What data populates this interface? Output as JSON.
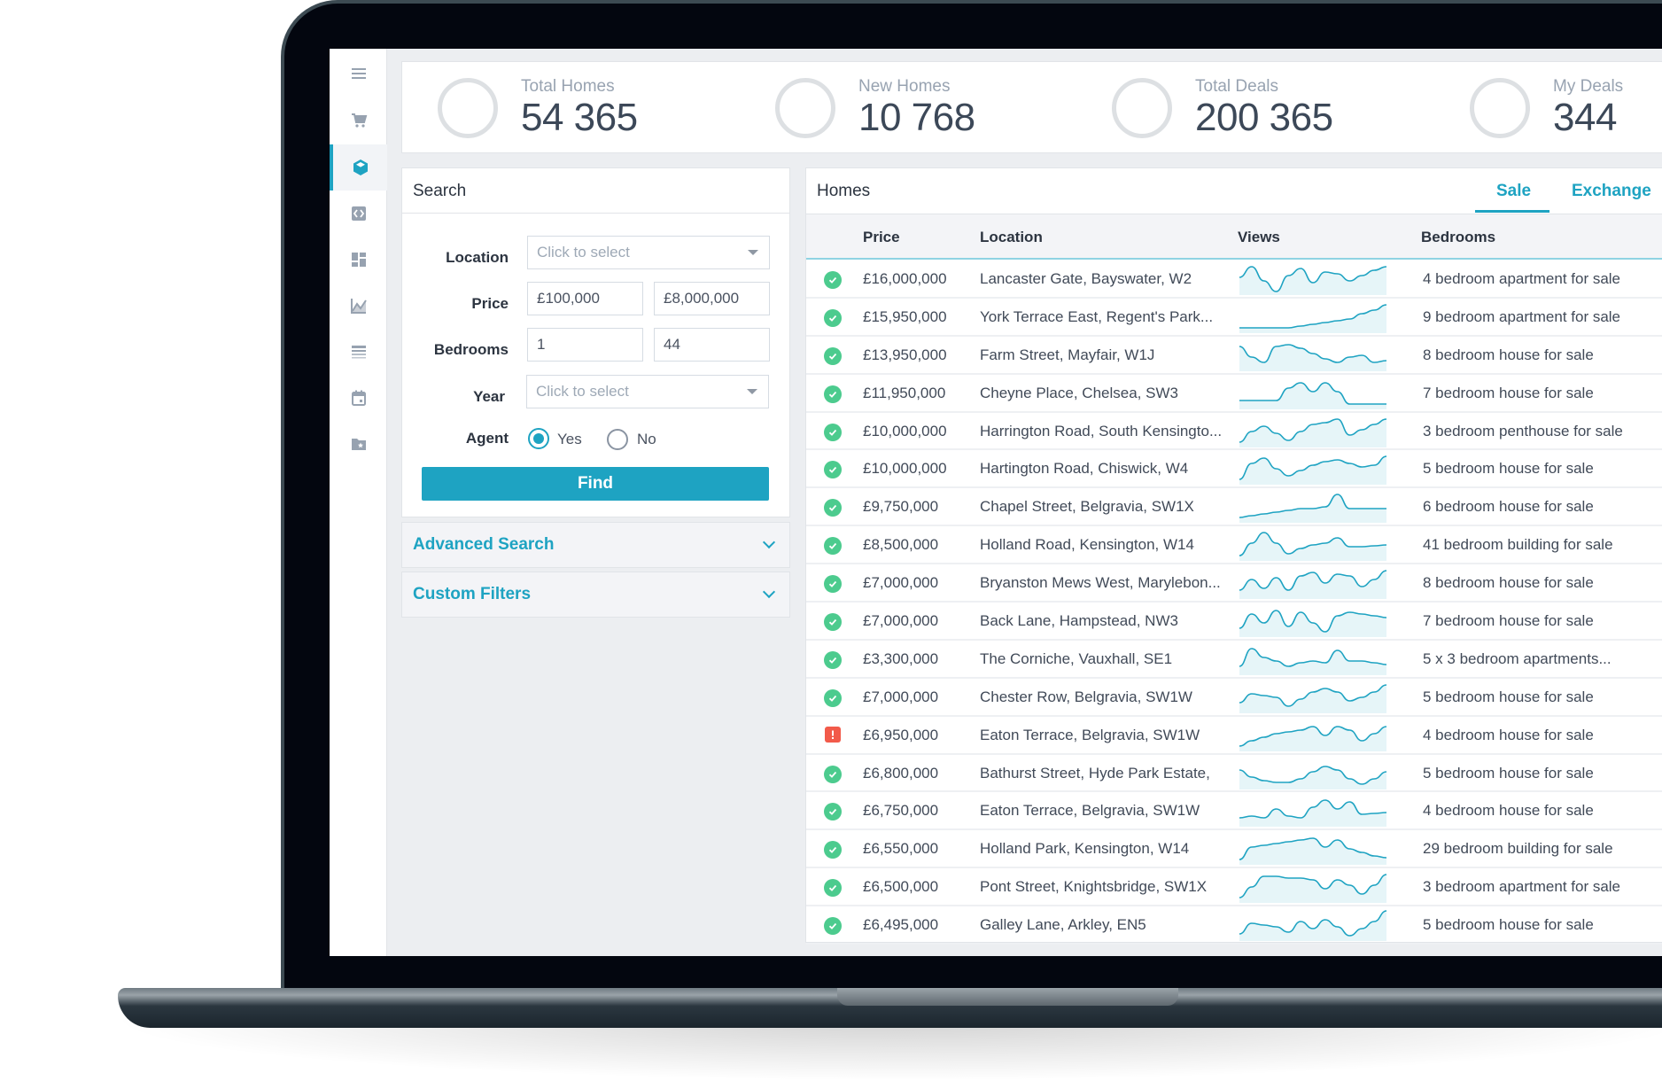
{
  "sidebar": {
    "items": [
      {
        "icon": "menu-icon",
        "active": false
      },
      {
        "icon": "cart-icon",
        "active": false
      },
      {
        "icon": "cube-icon",
        "active": true
      },
      {
        "icon": "code-icon",
        "active": false
      },
      {
        "icon": "dashboard-icon",
        "active": false
      },
      {
        "icon": "chart-icon",
        "active": false
      },
      {
        "icon": "table-icon",
        "active": false
      },
      {
        "icon": "calendar-icon",
        "active": false
      },
      {
        "icon": "folder-star-icon",
        "active": false
      }
    ]
  },
  "stats": [
    {
      "label": "Total Homes",
      "value": "54 365"
    },
    {
      "label": "New Homes",
      "value": "10 768"
    },
    {
      "label": "Total Deals",
      "value": "200 365"
    },
    {
      "label": "My Deals",
      "value": "344"
    }
  ],
  "search": {
    "title": "Search",
    "location": {
      "label": "Location",
      "placeholder": "Click to select"
    },
    "price": {
      "label": "Price",
      "min": "£100,000",
      "max": "£8,000,000"
    },
    "bedrooms": {
      "label": "Bedrooms",
      "min": "1",
      "max": "44"
    },
    "year": {
      "label": "Year",
      "placeholder": "Click to select"
    },
    "agent": {
      "label": "Agent",
      "options": [
        "Yes",
        "No"
      ],
      "selected": "Yes"
    },
    "find_label": "Find"
  },
  "accordions": [
    {
      "label": "Advanced Search"
    },
    {
      "label": "Custom Filters"
    }
  ],
  "homes": {
    "title": "Homes",
    "tabs": [
      {
        "label": "Sale",
        "active": true
      },
      {
        "label": "Exchange",
        "active": false
      }
    ],
    "columns": [
      "Price",
      "Location",
      "Views",
      "Bedrooms"
    ],
    "accent": "#1ea3c2",
    "rows": [
      {
        "status": "ok",
        "price": "£16,000,000",
        "location": "Lancaster Gate, Bayswater, W2",
        "bedrooms": "4 bedroom apartment for sale",
        "views": [
          18,
          30,
          14,
          2,
          20,
          28,
          12,
          24,
          22,
          14,
          20,
          26,
          30
        ]
      },
      {
        "status": "ok",
        "price": "£15,950,000",
        "location": "York Terrace East, Regent's Park...",
        "bedrooms": "9 bedroom apartment for sale",
        "views": [
          4,
          4,
          4,
          4,
          4,
          6,
          8,
          10,
          12,
          14,
          20,
          24,
          30
        ]
      },
      {
        "status": "ok",
        "price": "£13,950,000",
        "location": "Farm Street, Mayfair, W1J",
        "bedrooms": "8 bedroom house for sale",
        "views": [
          26,
          14,
          8,
          26,
          28,
          24,
          18,
          12,
          8,
          14,
          16,
          8,
          10
        ]
      },
      {
        "status": "ok",
        "price": "£11,950,000",
        "location": "Cheyne Place, Chelsea, SW3",
        "bedrooms": "7 bedroom house for sale",
        "views": [
          8,
          8,
          8,
          8,
          22,
          28,
          18,
          28,
          18,
          4,
          4,
          4,
          4
        ]
      },
      {
        "status": "ok",
        "price": "£10,000,000",
        "location": "Harrington Road, South Kensingto...",
        "bedrooms": "3 bedroom penthouse for sale",
        "views": [
          4,
          16,
          22,
          14,
          6,
          16,
          24,
          26,
          30,
          12,
          18,
          24,
          30
        ]
      },
      {
        "status": "ok",
        "price": "£10,000,000",
        "location": "Hartington Road, Chiswick, W4",
        "bedrooms": "5 bedroom house for sale",
        "views": [
          4,
          22,
          28,
          16,
          8,
          14,
          20,
          24,
          26,
          22,
          18,
          20,
          30
        ]
      },
      {
        "status": "ok",
        "price": "£9,750,000",
        "location": "Chapel Street, Belgravia, SW1X",
        "bedrooms": "6 bedroom house for sale",
        "views": [
          4,
          6,
          8,
          10,
          12,
          14,
          14,
          16,
          30,
          14,
          14,
          14,
          14
        ]
      },
      {
        "status": "ok",
        "price": "£8,500,000",
        "location": "Holland Road, Kensington, W14",
        "bedrooms": "41 bedroom building for sale",
        "views": [
          4,
          18,
          30,
          18,
          6,
          12,
          16,
          18,
          24,
          14,
          14,
          15,
          16
        ]
      },
      {
        "status": "ok",
        "price": "£7,000,000",
        "location": "Bryanston Mews West, Marylebon...",
        "bedrooms": "8 bedroom house for sale",
        "views": [
          8,
          20,
          10,
          22,
          8,
          24,
          28,
          16,
          26,
          24,
          12,
          20,
          30
        ]
      },
      {
        "status": "ok",
        "price": "£7,000,000",
        "location": "Back Lane, Hampstead, NW3",
        "bedrooms": "7 bedroom house for sale",
        "views": [
          8,
          24,
          14,
          28,
          10,
          26,
          14,
          4,
          22,
          26,
          24,
          22,
          20
        ]
      },
      {
        "status": "ok",
        "price": "£3,300,000",
        "location": "The Corniche, Vauxhall, SE1",
        "bedrooms": "5 x 3 bedroom apartments...",
        "views": [
          8,
          28,
          18,
          14,
          8,
          12,
          14,
          12,
          26,
          14,
          14,
          12,
          10
        ]
      },
      {
        "status": "ok",
        "price": "£7,000,000",
        "location": "Chester Row, Belgravia, SW1W",
        "bedrooms": "5 bedroom house for sale",
        "views": [
          10,
          20,
          18,
          16,
          6,
          14,
          22,
          26,
          22,
          12,
          16,
          22,
          30
        ]
      },
      {
        "status": "alert",
        "price": "£6,950,000",
        "location": "Eaton Terrace, Belgravia, SW1W",
        "bedrooms": "4 bedroom house for sale",
        "views": [
          4,
          10,
          14,
          18,
          20,
          22,
          26,
          16,
          26,
          22,
          10,
          18,
          26
        ]
      },
      {
        "status": "ok",
        "price": "£6,800,000",
        "location": "Bathurst Street, Hyde Park Estate,",
        "bedrooms": "5 bedroom house for sale",
        "views": [
          20,
          12,
          8,
          6,
          6,
          10,
          18,
          24,
          20,
          10,
          4,
          10,
          18
        ]
      },
      {
        "status": "ok",
        "price": "£6,750,000",
        "location": "Eaton Terrace, Belgravia, SW1W",
        "bedrooms": "4 bedroom house for sale",
        "views": [
          8,
          10,
          8,
          18,
          10,
          8,
          20,
          28,
          18,
          26,
          12,
          13,
          14
        ]
      },
      {
        "status": "ok",
        "price": "£6,550,000",
        "location": "Holland Park, Kensington, W14",
        "bedrooms": "29 bedroom building for sale",
        "views": [
          4,
          18,
          20,
          22,
          24,
          26,
          28,
          18,
          26,
          16,
          12,
          8,
          6
        ]
      },
      {
        "status": "ok",
        "price": "£6,500,000",
        "location": "Pont Street, Knightsbridge, SW1X",
        "bedrooms": "3 bedroom apartment for sale",
        "views": [
          4,
          16,
          28,
          28,
          26,
          26,
          24,
          14,
          24,
          18,
          8,
          18,
          30
        ]
      },
      {
        "status": "ok",
        "price": "£6,495,000",
        "location": "Galley Lane, Arkley, EN5",
        "bedrooms": "5 bedroom house for sale",
        "views": [
          6,
          18,
          16,
          14,
          8,
          20,
          12,
          22,
          14,
          4,
          12,
          20,
          32
        ]
      }
    ]
  }
}
